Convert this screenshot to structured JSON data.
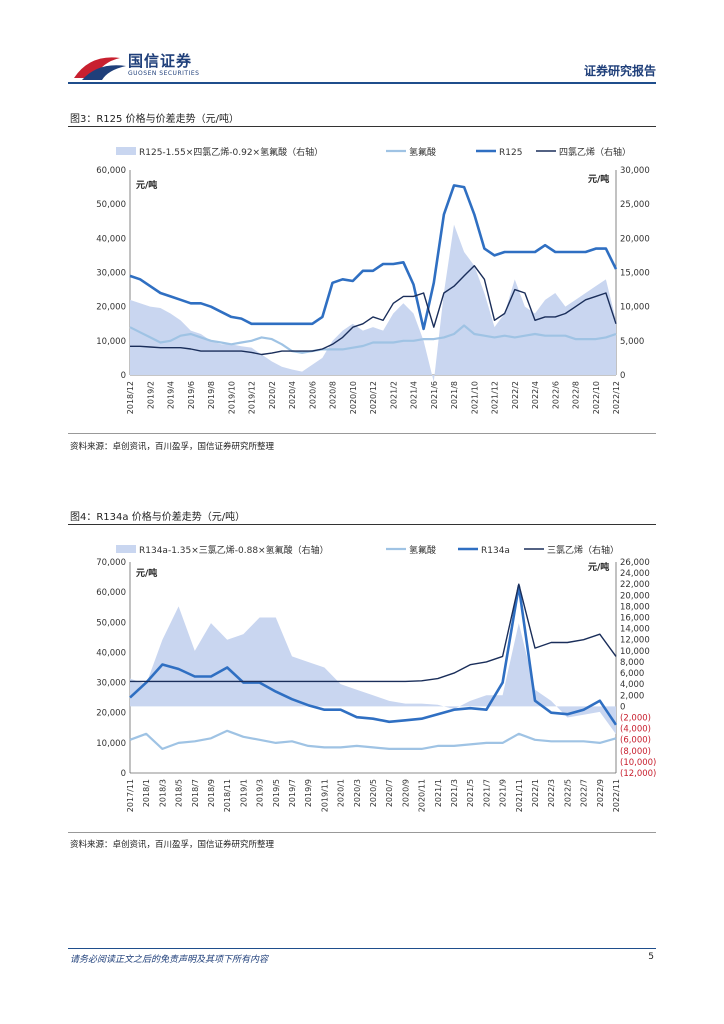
{
  "header": {
    "brand_cn": "国信证券",
    "brand_en": "GUOSEN SECURITIES",
    "report_type": "证券研究报告"
  },
  "figure3": {
    "title": "图3：R125 价格与价差走势（元/吨）",
    "source": "资料来源：卓创资讯，百川盈孚，国信证券研究所整理",
    "chart_data": {
      "type": "line",
      "title": "R125 价格与价差走势（元/吨）",
      "unit_label": "元/吨",
      "legend": [
        "R125-1.55×四氯乙烯-0.92×氢氟酸（右轴）",
        "氢氟酸",
        "R125",
        "四氯乙烯（右轴）"
      ],
      "ylim_left": [
        0,
        60000
      ],
      "ylim_right": [
        0,
        30000
      ],
      "yticks_left": [
        "0",
        "10,000",
        "20,000",
        "30,000",
        "40,000",
        "50,000",
        "60,000"
      ],
      "yticks_right": [
        "0",
        "5,000",
        "10,000",
        "15,000",
        "20,000",
        "25,000",
        "30,000"
      ],
      "x_tick_labels": [
        "2018/12",
        "2019/2",
        "2019/4",
        "2019/6",
        "2019/8",
        "2019/10",
        "2019/12",
        "2020/2",
        "2020/4",
        "2020/6",
        "2020/8",
        "2020/10",
        "2020/12",
        "2021/2",
        "2021/4",
        "2021/6",
        "2021/8",
        "2021/10",
        "2021/12",
        "2022/2",
        "2022/4",
        "2022/6",
        "2022/8",
        "2022/10",
        "2022/12"
      ],
      "series": [
        {
          "name": "R125-1.55×四氯乙烯-0.92×氢氟酸（右轴）",
          "axis": "right",
          "x": [
            0,
            1,
            2,
            3,
            4,
            5,
            6,
            7,
            8,
            9,
            10,
            11,
            12,
            13,
            14,
            15,
            16,
            17,
            18,
            19,
            20,
            21,
            22,
            23,
            24,
            25,
            26,
            27,
            28,
            29,
            30,
            31,
            32,
            33,
            34,
            35,
            36,
            37,
            38,
            39,
            40,
            41,
            42,
            43,
            44,
            45,
            46,
            47,
            48
          ],
          "values": [
            11000,
            10500,
            10000,
            9800,
            9000,
            8000,
            6500,
            6000,
            5000,
            4500,
            4500,
            4200,
            4000,
            3000,
            2000,
            1200,
            800,
            500,
            1500,
            2500,
            5000,
            6500,
            7500,
            6500,
            7000,
            6500,
            9000,
            10500,
            9000,
            5000,
            -1000,
            12000,
            22000,
            18000,
            16000,
            12000,
            7000,
            9000,
            14000,
            10000,
            9000,
            11000,
            12000,
            10000,
            11000,
            12000,
            13000,
            14000,
            8000
          ]
        },
        {
          "name": "氢氟酸",
          "axis": "left",
          "x": [
            0,
            1,
            2,
            3,
            4,
            5,
            6,
            7,
            8,
            9,
            10,
            11,
            12,
            13,
            14,
            15,
            16,
            17,
            18,
            19,
            20,
            21,
            22,
            23,
            24,
            25,
            26,
            27,
            28,
            29,
            30,
            31,
            32,
            33,
            34,
            35,
            36,
            37,
            38,
            39,
            40,
            41,
            42,
            43,
            44,
            45,
            46,
            47,
            48
          ],
          "values": [
            14000,
            12500,
            11000,
            9500,
            10000,
            11500,
            12000,
            11000,
            10000,
            9500,
            9000,
            9500,
            10000,
            11000,
            10500,
            9000,
            7000,
            6500,
            7000,
            7500,
            7500,
            7500,
            8000,
            8500,
            9500,
            9500,
            9500,
            10000,
            10000,
            10500,
            10500,
            11000,
            12000,
            14500,
            12000,
            11500,
            11000,
            11500,
            11000,
            11500,
            12000,
            11500,
            11500,
            11500,
            10500,
            10500,
            10500,
            11000,
            12000
          ]
        },
        {
          "name": "R125",
          "axis": "left",
          "x": [
            0,
            1,
            2,
            3,
            4,
            5,
            6,
            7,
            8,
            9,
            10,
            11,
            12,
            13,
            14,
            15,
            16,
            17,
            18,
            19,
            20,
            21,
            22,
            23,
            24,
            25,
            26,
            27,
            28,
            29,
            30,
            31,
            32,
            33,
            34,
            35,
            36,
            37,
            38,
            39,
            40,
            41,
            42,
            43,
            44,
            45,
            46,
            47,
            48
          ],
          "values": [
            29000,
            28000,
            26000,
            24000,
            23000,
            22000,
            21000,
            21000,
            20000,
            18500,
            17000,
            16500,
            15000,
            15000,
            15000,
            15000,
            15000,
            15000,
            15000,
            17000,
            27000,
            28000,
            27500,
            30500,
            30500,
            32500,
            32500,
            33000,
            26500,
            13500,
            27000,
            47000,
            55500,
            55000,
            47000,
            37000,
            35000,
            36000,
            36000,
            36000,
            36000,
            38000,
            36000,
            36000,
            36000,
            36000,
            37000,
            37000,
            31000
          ]
        },
        {
          "name": "四氯乙烯（右轴）",
          "axis": "right",
          "x": [
            0,
            1,
            2,
            3,
            4,
            5,
            6,
            7,
            8,
            9,
            10,
            11,
            12,
            13,
            14,
            15,
            16,
            17,
            18,
            19,
            20,
            21,
            22,
            23,
            24,
            25,
            26,
            27,
            28,
            29,
            30,
            31,
            32,
            33,
            34,
            35,
            36,
            37,
            38,
            39,
            40,
            41,
            42,
            43,
            44,
            45,
            46,
            47,
            48
          ],
          "values": [
            4200,
            4200,
            4100,
            4000,
            4000,
            4000,
            3800,
            3500,
            3500,
            3500,
            3500,
            3500,
            3300,
            3000,
            3200,
            3500,
            3500,
            3500,
            3500,
            3800,
            4500,
            5500,
            7000,
            7500,
            8500,
            8000,
            10500,
            11500,
            11500,
            12000,
            7000,
            12000,
            13000,
            14500,
            16000,
            14000,
            8000,
            9000,
            12500,
            12000,
            8000,
            8500,
            8500,
            9000,
            10000,
            11000,
            11500,
            12000,
            7500
          ]
        }
      ]
    }
  },
  "figure4": {
    "title": "图4：R134a 价格与价差走势（元/吨）",
    "source": "资料来源：卓创资讯，百川盈孚，国信证券研究所整理",
    "chart_data": {
      "type": "line",
      "title": "R134a 价格与价差走势（元/吨）",
      "unit_label": "元/吨",
      "legend": [
        "R134a-1.35×三氯乙烯-0.88×氢氟酸（右轴）",
        "氢氟酸",
        "R134a",
        "三氯乙烯（右轴）"
      ],
      "ylim_left": [
        0,
        70000
      ],
      "ylim_right": [
        -12000,
        26000
      ],
      "yticks_left": [
        "0",
        "10,000",
        "20,000",
        "30,000",
        "40,000",
        "50,000",
        "60,000",
        "70,000"
      ],
      "yticks_right": [
        "(12,000)",
        "(10,000)",
        "(8,000)",
        "(6,000)",
        "(4,000)",
        "(2,000)",
        "0",
        "2,000",
        "4,000",
        "6,000",
        "8,000",
        "10,000",
        "12,000",
        "14,000",
        "16,000",
        "18,000",
        "20,000",
        "22,000",
        "24,000",
        "26,000"
      ],
      "x_tick_labels": [
        "2017/11",
        "2018/1",
        "2018/3",
        "2018/5",
        "2018/7",
        "2018/9",
        "2018/11",
        "2019/1",
        "2019/3",
        "2019/5",
        "2019/7",
        "2019/9",
        "2019/11",
        "2020/1",
        "2020/3",
        "2020/5",
        "2020/7",
        "2020/9",
        "2020/11",
        "2021/1",
        "2021/3",
        "2021/5",
        "2021/7",
        "2021/9",
        "2021/11",
        "2022/1",
        "2022/3",
        "2022/5",
        "2022/7",
        "2022/9",
        "2022/11"
      ],
      "series": [
        {
          "name": "R134a-1.35×三氯乙烯-0.88×氢氟酸（右轴）",
          "axis": "right",
          "x": [
            0,
            1,
            2,
            3,
            4,
            5,
            6,
            7,
            8,
            9,
            10,
            11,
            12,
            13,
            14,
            15,
            16,
            17,
            18,
            19,
            20,
            21,
            22,
            23,
            24,
            25,
            26,
            27,
            28,
            29,
            30
          ],
          "values": [
            5000,
            4000,
            12000,
            18000,
            10000,
            15000,
            12000,
            13000,
            16000,
            16000,
            9000,
            8000,
            7000,
            4000,
            3000,
            2000,
            1000,
            500,
            500,
            300,
            -500,
            1000,
            2000,
            2000,
            15000,
            3000,
            1000,
            -2000,
            -1500,
            -1000,
            -5000
          ]
        },
        {
          "name": "氢氟酸",
          "axis": "left",
          "x": [
            0,
            1,
            2,
            3,
            4,
            5,
            6,
            7,
            8,
            9,
            10,
            11,
            12,
            13,
            14,
            15,
            16,
            17,
            18,
            19,
            20,
            21,
            22,
            23,
            24,
            25,
            26,
            27,
            28,
            29,
            30
          ],
          "values": [
            11000,
            13000,
            8000,
            10000,
            10500,
            11500,
            14000,
            12000,
            11000,
            10000,
            10500,
            9000,
            8500,
            8500,
            9000,
            8500,
            8000,
            8000,
            8000,
            9000,
            9000,
            9500,
            10000,
            10000,
            13000,
            11000,
            10500,
            10500,
            10500,
            10000,
            11500
          ]
        },
        {
          "name": "R134a",
          "axis": "left",
          "x": [
            0,
            1,
            2,
            3,
            4,
            5,
            6,
            7,
            8,
            9,
            10,
            11,
            12,
            13,
            14,
            15,
            16,
            17,
            18,
            19,
            20,
            21,
            22,
            23,
            24,
            25,
            26,
            27,
            28,
            29,
            30
          ],
          "values": [
            25000,
            30000,
            36000,
            34500,
            32000,
            32000,
            35000,
            30000,
            30000,
            27000,
            24500,
            22500,
            21000,
            21000,
            18500,
            18000,
            17000,
            17500,
            18000,
            19500,
            21000,
            21500,
            21000,
            30000,
            62000,
            24000,
            20000,
            19500,
            21000,
            24000,
            16000
          ]
        },
        {
          "name": "三氯乙烯（右轴）",
          "axis": "right",
          "x": [
            0,
            1,
            2,
            3,
            4,
            5,
            6,
            7,
            8,
            9,
            10,
            11,
            12,
            13,
            14,
            15,
            16,
            17,
            18,
            19,
            20,
            21,
            22,
            23,
            24,
            25,
            26,
            27,
            28,
            29,
            30
          ],
          "values": [
            4500,
            4500,
            4500,
            4500,
            4500,
            4500,
            4500,
            4500,
            4500,
            4500,
            4500,
            4500,
            4500,
            4500,
            4500,
            4500,
            4500,
            4500,
            4600,
            5000,
            6000,
            7500,
            8000,
            9000,
            22000,
            10500,
            11500,
            11500,
            12000,
            13000,
            9000
          ]
        }
      ]
    }
  },
  "footer": {
    "disclaimer": "请务必阅读正文之后的免责声明及其项下所有内容",
    "page_number": "5"
  }
}
